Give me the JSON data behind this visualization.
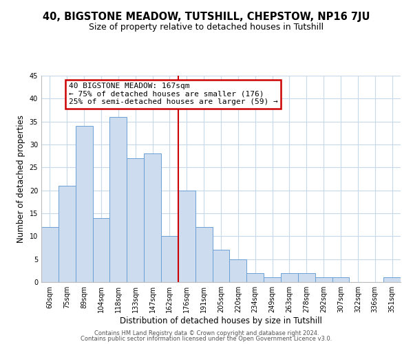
{
  "title1": "40, BIGSTONE MEADOW, TUTSHILL, CHEPSTOW, NP16 7JU",
  "title2": "Size of property relative to detached houses in Tutshill",
  "xlabel": "Distribution of detached houses by size in Tutshill",
  "ylabel": "Number of detached properties",
  "bar_labels": [
    "60sqm",
    "75sqm",
    "89sqm",
    "104sqm",
    "118sqm",
    "133sqm",
    "147sqm",
    "162sqm",
    "176sqm",
    "191sqm",
    "205sqm",
    "220sqm",
    "234sqm",
    "249sqm",
    "263sqm",
    "278sqm",
    "292sqm",
    "307sqm",
    "322sqm",
    "336sqm",
    "351sqm"
  ],
  "bar_values": [
    12,
    21,
    34,
    14,
    36,
    27,
    28,
    10,
    20,
    12,
    7,
    5,
    2,
    1,
    2,
    2,
    1,
    1,
    0,
    0,
    1
  ],
  "bar_color": "#cddcef",
  "bar_edge_color": "#6b9fd4",
  "red_line_x": 7.5,
  "annotation_title": "40 BIGSTONE MEADOW: 167sqm",
  "annotation_line1": "← 75% of detached houses are smaller (176)",
  "annotation_line2": "25% of semi-detached houses are larger (59) →",
  "annotation_box_color": "#ffffff",
  "annotation_box_edge": "#cc0000",
  "red_line_color": "#cc0000",
  "ylim": [
    0,
    45
  ],
  "yticks": [
    0,
    5,
    10,
    15,
    20,
    25,
    30,
    35,
    40,
    45
  ],
  "footer1": "Contains HM Land Registry data © Crown copyright and database right 2024.",
  "footer2": "Contains public sector information licensed under the Open Government Licence v3.0.",
  "bg_color": "#ffffff",
  "grid_color": "#c8d8ec",
  "title1_fontsize": 10.5,
  "title2_fontsize": 9,
  "axis_label_fontsize": 8.5,
  "tick_fontsize": 7,
  "footer_fontsize": 6,
  "annotation_fontsize": 8
}
